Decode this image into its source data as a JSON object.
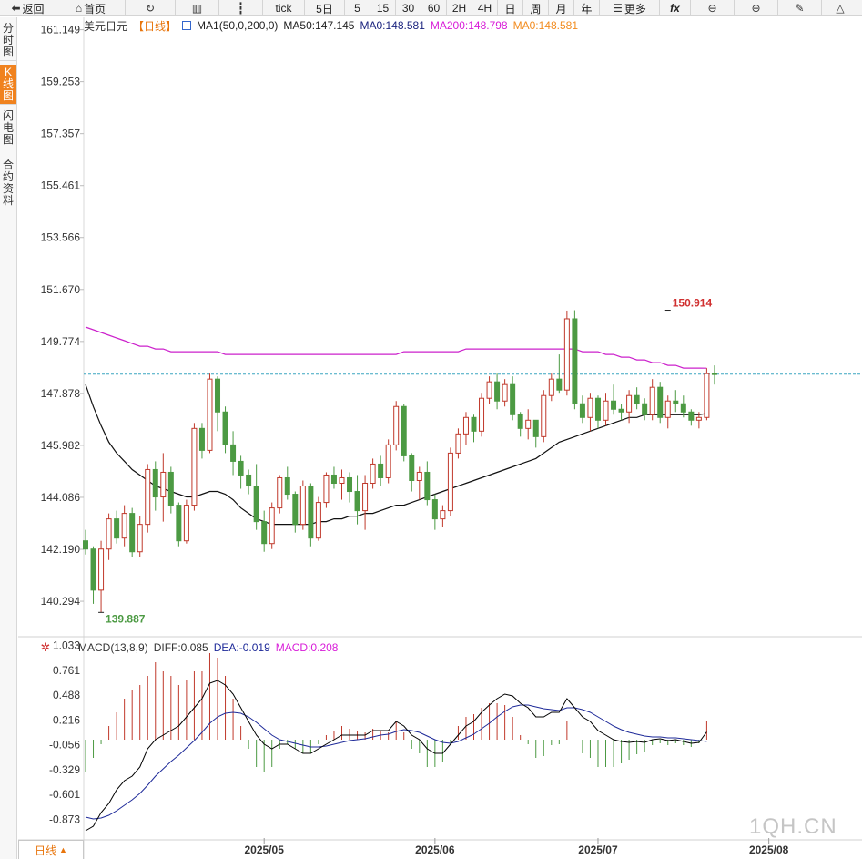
{
  "toolbar": {
    "back": "返回",
    "home": "首页",
    "tick": "tick",
    "periods": [
      "5日",
      "5",
      "15",
      "30",
      "60",
      "2H",
      "4H",
      "日",
      "周",
      "月",
      "年"
    ],
    "more": "更多",
    "fx": "fx"
  },
  "side_tabs": [
    "分时图",
    "K线图",
    "闪电图",
    "合约资料"
  ],
  "legend": {
    "symbol": "美元日元",
    "period": "【日线】",
    "ma_label": "MA1(50,0,200,0)",
    "ma50": "MA50:147.145",
    "ma0": "MA0:148.581",
    "ma200": "MA200:148.798",
    "ma0b": "MA0:148.581"
  },
  "macd_legend": {
    "label": "MACD(13,8,9)",
    "diff": "DIFF:0.085",
    "dea": "DEA:-0.019",
    "macd": "MACD:0.208"
  },
  "bottom_tab": "日线",
  "watermark": "1QH.CN",
  "colors": {
    "up": "#c0392b",
    "down": "#4c9a43",
    "ma50": "#111111",
    "ma200": "#cc22cc",
    "diff": "#000000",
    "dea": "#1e2a99",
    "accent": "#f0821e",
    "dash": "#3aa6c0"
  },
  "chart_data": [
    {
      "type": "candlestick",
      "y_ticks": [
        "161.149",
        "159.253",
        "157.357",
        "155.461",
        "153.566",
        "151.670",
        "149.774",
        "147.878",
        "145.982",
        "144.086",
        "142.190",
        "140.294"
      ],
      "ylim": [
        139.0,
        161.6
      ],
      "x_ticks": [
        "2025/05",
        "2025/06",
        "2025/07",
        "2025/08"
      ],
      "x_tick_index": [
        23,
        45,
        66,
        88
      ],
      "current_price": 148.581,
      "annotations": [
        {
          "text": "150.914",
          "index": 75,
          "value": 150.914
        },
        {
          "text": "139.887",
          "index": 2,
          "value": 139.887
        }
      ],
      "ohlc": [
        [
          142.5,
          142.9,
          142.0,
          142.2
        ],
        [
          142.2,
          142.3,
          140.2,
          140.7
        ],
        [
          140.7,
          142.5,
          139.887,
          142.2
        ],
        [
          142.2,
          143.5,
          141.8,
          143.3
        ],
        [
          143.3,
          143.6,
          142.4,
          142.6
        ],
        [
          142.6,
          143.8,
          142.3,
          143.5
        ],
        [
          143.5,
          143.7,
          141.9,
          142.1
        ],
        [
          142.1,
          143.4,
          141.9,
          143.1
        ],
        [
          143.1,
          145.3,
          142.8,
          145.1
        ],
        [
          145.1,
          145.4,
          143.6,
          144.1
        ],
        [
          144.1,
          145.7,
          143.2,
          145.0
        ],
        [
          145.0,
          145.2,
          143.5,
          143.8
        ],
        [
          143.8,
          143.9,
          142.3,
          142.5
        ],
        [
          142.5,
          144.0,
          142.4,
          143.8
        ],
        [
          143.8,
          146.8,
          143.6,
          146.6
        ],
        [
          146.6,
          146.8,
          145.5,
          145.8
        ],
        [
          145.8,
          148.6,
          145.7,
          148.4
        ],
        [
          148.4,
          148.5,
          146.5,
          147.2
        ],
        [
          147.2,
          147.4,
          145.7,
          146.0
        ],
        [
          146.0,
          146.5,
          144.9,
          145.4
        ],
        [
          145.4,
          145.6,
          144.4,
          144.9
        ],
        [
          144.9,
          145.1,
          144.2,
          144.5
        ],
        [
          144.5,
          145.3,
          142.9,
          143.2
        ],
        [
          143.2,
          143.6,
          142.1,
          142.4
        ],
        [
          142.4,
          143.9,
          142.2,
          143.7
        ],
        [
          143.7,
          144.9,
          143.5,
          144.8
        ],
        [
          144.8,
          145.2,
          144.0,
          144.2
        ],
        [
          144.2,
          144.3,
          142.8,
          143.1
        ],
        [
          143.1,
          144.7,
          142.9,
          144.5
        ],
        [
          144.5,
          144.6,
          142.3,
          142.6
        ],
        [
          142.6,
          144.1,
          142.5,
          143.9
        ],
        [
          143.9,
          145.0,
          143.7,
          144.9
        ],
        [
          144.9,
          145.2,
          144.4,
          144.6
        ],
        [
          144.6,
          145.1,
          144.0,
          144.8
        ],
        [
          144.8,
          145.0,
          143.9,
          144.3
        ],
        [
          144.3,
          144.9,
          143.1,
          143.6
        ],
        [
          143.6,
          144.9,
          142.9,
          144.6
        ],
        [
          144.6,
          145.5,
          144.4,
          145.3
        ],
        [
          145.3,
          145.6,
          144.5,
          144.8
        ],
        [
          144.8,
          146.2,
          144.6,
          146.0
        ],
        [
          146.0,
          147.6,
          145.8,
          147.4
        ],
        [
          147.4,
          147.5,
          145.4,
          145.6
        ],
        [
          145.6,
          145.7,
          144.3,
          144.7
        ],
        [
          144.7,
          145.2,
          144.0,
          145.0
        ],
        [
          145.0,
          145.4,
          143.8,
          144.0
        ],
        [
          144.0,
          144.2,
          142.9,
          143.3
        ],
        [
          143.3,
          143.8,
          143.0,
          143.6
        ],
        [
          143.6,
          145.9,
          143.4,
          145.7
        ],
        [
          145.7,
          146.6,
          145.5,
          146.4
        ],
        [
          146.4,
          147.2,
          146.0,
          147.0
        ],
        [
          147.0,
          147.1,
          146.1,
          146.5
        ],
        [
          146.5,
          147.9,
          146.3,
          147.7
        ],
        [
          147.7,
          148.5,
          147.5,
          148.3
        ],
        [
          148.3,
          148.6,
          147.3,
          147.6
        ],
        [
          147.6,
          148.4,
          147.4,
          148.2
        ],
        [
          148.2,
          148.5,
          146.9,
          147.1
        ],
        [
          147.1,
          147.2,
          146.3,
          146.6
        ],
        [
          146.6,
          147.3,
          146.2,
          146.9
        ],
        [
          146.9,
          146.9,
          145.9,
          146.3
        ],
        [
          146.3,
          148.0,
          146.1,
          147.8
        ],
        [
          147.8,
          148.6,
          147.6,
          148.4
        ],
        [
          148.4,
          149.3,
          147.9,
          148.0
        ],
        [
          148.0,
          150.9,
          147.8,
          150.6
        ],
        [
          150.6,
          150.914,
          147.3,
          147.5
        ],
        [
          147.5,
          147.8,
          146.8,
          147.0
        ],
        [
          147.0,
          147.9,
          146.5,
          147.7
        ],
        [
          147.7,
          147.8,
          146.6,
          146.9
        ],
        [
          146.9,
          147.9,
          146.7,
          147.6
        ],
        [
          147.6,
          148.2,
          147.1,
          147.3
        ],
        [
          147.3,
          147.5,
          146.9,
          147.2
        ],
        [
          147.2,
          148.0,
          146.8,
          147.8
        ],
        [
          147.8,
          148.1,
          147.3,
          147.5
        ],
        [
          147.5,
          147.7,
          146.9,
          147.1
        ],
        [
          147.1,
          148.4,
          146.9,
          148.1
        ],
        [
          148.1,
          148.3,
          146.8,
          147.0
        ],
        [
          147.0,
          147.8,
          146.6,
          147.6
        ],
        [
          147.6,
          148.0,
          147.2,
          147.5
        ],
        [
          147.5,
          147.8,
          147.0,
          147.2
        ],
        [
          147.2,
          147.3,
          146.7,
          146.9
        ],
        [
          146.9,
          147.2,
          146.6,
          147.0
        ],
        [
          147.0,
          148.8,
          146.9,
          148.6
        ],
        [
          148.6,
          148.9,
          148.2,
          148.581
        ]
      ],
      "ma50": [
        148.2,
        147.4,
        146.7,
        146.1,
        145.7,
        145.4,
        145.1,
        144.9,
        144.7,
        144.5,
        144.4,
        144.3,
        144.2,
        144.1,
        144.1,
        144.2,
        144.3,
        144.3,
        144.2,
        144.0,
        143.7,
        143.5,
        143.3,
        143.2,
        143.1,
        143.1,
        143.1,
        143.1,
        143.1,
        143.1,
        143.2,
        143.2,
        143.3,
        143.3,
        143.4,
        143.4,
        143.5,
        143.5,
        143.6,
        143.7,
        143.8,
        143.8,
        143.9,
        144.0,
        144.1,
        144.2,
        144.3,
        144.4,
        144.5,
        144.6,
        144.7,
        144.8,
        144.9,
        145.0,
        145.1,
        145.2,
        145.3,
        145.4,
        145.5,
        145.7,
        145.9,
        146.1,
        146.2,
        146.3,
        146.4,
        146.5,
        146.6,
        146.7,
        146.8,
        146.9,
        147.0,
        147.0,
        147.1,
        147.1,
        147.1,
        147.1,
        147.1,
        147.1,
        147.1,
        147.1,
        147.145
      ],
      "ma200": [
        150.3,
        150.2,
        150.1,
        150.0,
        149.9,
        149.8,
        149.7,
        149.6,
        149.6,
        149.5,
        149.5,
        149.4,
        149.4,
        149.4,
        149.4,
        149.4,
        149.4,
        149.4,
        149.3,
        149.3,
        149.3,
        149.3,
        149.3,
        149.3,
        149.3,
        149.3,
        149.3,
        149.3,
        149.3,
        149.3,
        149.3,
        149.3,
        149.3,
        149.3,
        149.3,
        149.3,
        149.3,
        149.3,
        149.3,
        149.3,
        149.3,
        149.4,
        149.4,
        149.4,
        149.4,
        149.4,
        149.4,
        149.4,
        149.4,
        149.5,
        149.5,
        149.5,
        149.5,
        149.5,
        149.5,
        149.5,
        149.5,
        149.5,
        149.5,
        149.5,
        149.5,
        149.5,
        149.5,
        149.5,
        149.4,
        149.4,
        149.4,
        149.3,
        149.3,
        149.2,
        149.2,
        149.1,
        149.1,
        149.0,
        149.0,
        148.9,
        148.9,
        148.8,
        148.8,
        148.8,
        148.798
      ]
    },
    {
      "type": "macd",
      "y_ticks": [
        "1.033",
        "0.761",
        "0.488",
        "0.216",
        "-0.056",
        "-0.329",
        "-0.601",
        "-0.873"
      ],
      "ylim": [
        -1.1,
        1.1
      ],
      "diff": [
        -1.0,
        -0.95,
        -0.8,
        -0.7,
        -0.55,
        -0.45,
        -0.4,
        -0.3,
        -0.1,
        0.0,
        0.05,
        0.1,
        0.15,
        0.25,
        0.35,
        0.45,
        0.62,
        0.65,
        0.6,
        0.5,
        0.35,
        0.2,
        0.05,
        -0.05,
        -0.1,
        -0.05,
        -0.05,
        -0.1,
        -0.15,
        -0.15,
        -0.1,
        -0.05,
        0.0,
        0.05,
        0.05,
        0.05,
        0.05,
        0.1,
        0.1,
        0.1,
        0.2,
        0.15,
        0.05,
        0.0,
        -0.1,
        -0.15,
        -0.15,
        -0.05,
        0.05,
        0.15,
        0.2,
        0.3,
        0.38,
        0.45,
        0.5,
        0.48,
        0.4,
        0.35,
        0.25,
        0.25,
        0.3,
        0.3,
        0.45,
        0.35,
        0.25,
        0.2,
        0.1,
        0.05,
        0.0,
        -0.02,
        -0.03,
        -0.02,
        -0.03,
        0.0,
        0.01,
        -0.01,
        0.0,
        -0.02,
        -0.04,
        -0.03,
        0.085
      ],
      "dea": [
        -0.85,
        -0.87,
        -0.86,
        -0.83,
        -0.78,
        -0.72,
        -0.66,
        -0.59,
        -0.5,
        -0.4,
        -0.32,
        -0.24,
        -0.17,
        -0.09,
        -0.01,
        0.08,
        0.18,
        0.25,
        0.29,
        0.3,
        0.29,
        0.25,
        0.19,
        0.12,
        0.05,
        0.0,
        -0.02,
        -0.04,
        -0.06,
        -0.08,
        -0.08,
        -0.07,
        -0.05,
        -0.03,
        -0.01,
        0.0,
        0.01,
        0.03,
        0.05,
        0.06,
        0.09,
        0.11,
        0.1,
        0.08,
        0.04,
        0.0,
        -0.03,
        -0.04,
        -0.02,
        0.02,
        0.06,
        0.12,
        0.18,
        0.25,
        0.31,
        0.36,
        0.38,
        0.38,
        0.36,
        0.34,
        0.33,
        0.32,
        0.35,
        0.35,
        0.33,
        0.3,
        0.25,
        0.2,
        0.15,
        0.11,
        0.08,
        0.06,
        0.04,
        0.03,
        0.03,
        0.02,
        0.02,
        0.01,
        0.0,
        -0.01,
        -0.019
      ],
      "macd": [
        -0.35,
        -0.2,
        -0.05,
        0.15,
        0.3,
        0.45,
        0.55,
        0.6,
        0.7,
        0.85,
        0.75,
        0.7,
        0.6,
        0.65,
        0.75,
        0.75,
        0.95,
        0.9,
        0.7,
        0.45,
        0.15,
        -0.1,
        -0.3,
        -0.35,
        -0.3,
        -0.1,
        -0.05,
        -0.1,
        -0.15,
        -0.15,
        -0.05,
        0.05,
        0.1,
        0.15,
        0.12,
        0.1,
        0.08,
        0.12,
        0.1,
        0.08,
        0.2,
        0.08,
        -0.1,
        -0.15,
        -0.3,
        -0.3,
        -0.25,
        -0.05,
        0.15,
        0.25,
        0.28,
        0.35,
        0.4,
        0.4,
        0.38,
        0.25,
        0.05,
        -0.05,
        -0.2,
        -0.18,
        -0.06,
        -0.05,
        0.2,
        0.0,
        -0.15,
        -0.2,
        -0.3,
        -0.3,
        -0.3,
        -0.26,
        -0.22,
        -0.16,
        -0.14,
        -0.06,
        -0.04,
        -0.06,
        -0.04,
        -0.06,
        -0.08,
        -0.04,
        0.208
      ]
    }
  ]
}
